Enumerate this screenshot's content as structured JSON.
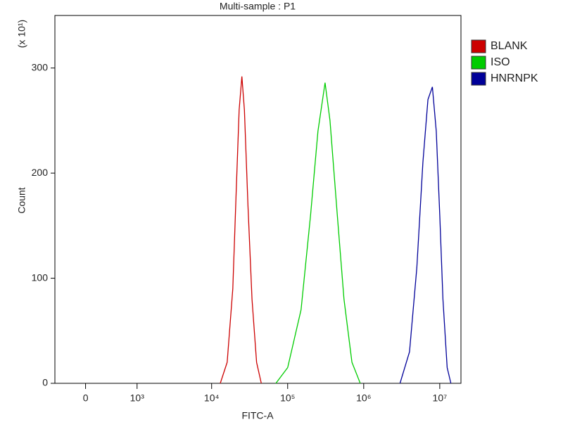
{
  "chart_data": {
    "type": "line",
    "title": "Multi-sample : P1",
    "xlabel": "FITC-A",
    "ylabel": "Count",
    "ylabel_multiplier": "(x 10¹)",
    "xscale": "biexponential",
    "xlim": [
      -470,
      19000000
    ],
    "ylim": [
      0,
      350
    ],
    "xticks": [
      0,
      {
        "value": 1000,
        "label": "10³"
      },
      {
        "value": 10000,
        "label": "10⁴"
      },
      {
        "value": 100000,
        "label": "10⁵"
      },
      {
        "value": 1000000,
        "label": "10⁶"
      },
      {
        "value": 10000000,
        "label": "10⁷"
      }
    ],
    "yticks": [
      0,
      100,
      200,
      300
    ],
    "legend": "right",
    "series": [
      {
        "name": "BLANK",
        "color": "#cc0000",
        "x": [
          13000,
          16000,
          19000,
          21000,
          23000,
          25000,
          27000,
          30000,
          34000,
          39000,
          45000
        ],
        "values": [
          0,
          20,
          90,
          180,
          260,
          292,
          260,
          170,
          80,
          20,
          0
        ]
      },
      {
        "name": "ISO",
        "color": "#00cc00",
        "x": [
          70000,
          100000,
          150000,
          200000,
          250000,
          310000,
          360000,
          450000,
          550000,
          700000,
          900000
        ],
        "values": [
          0,
          15,
          70,
          160,
          240,
          286,
          250,
          160,
          80,
          20,
          0
        ]
      },
      {
        "name": "HNRNPK",
        "color": "#000099",
        "x": [
          3000000,
          4000000,
          5000000,
          6000000,
          7000000,
          8000000,
          9000000,
          10000000,
          11000000,
          12500000,
          14000000
        ],
        "values": [
          0,
          30,
          110,
          210,
          270,
          282,
          240,
          160,
          80,
          15,
          0
        ]
      }
    ]
  }
}
